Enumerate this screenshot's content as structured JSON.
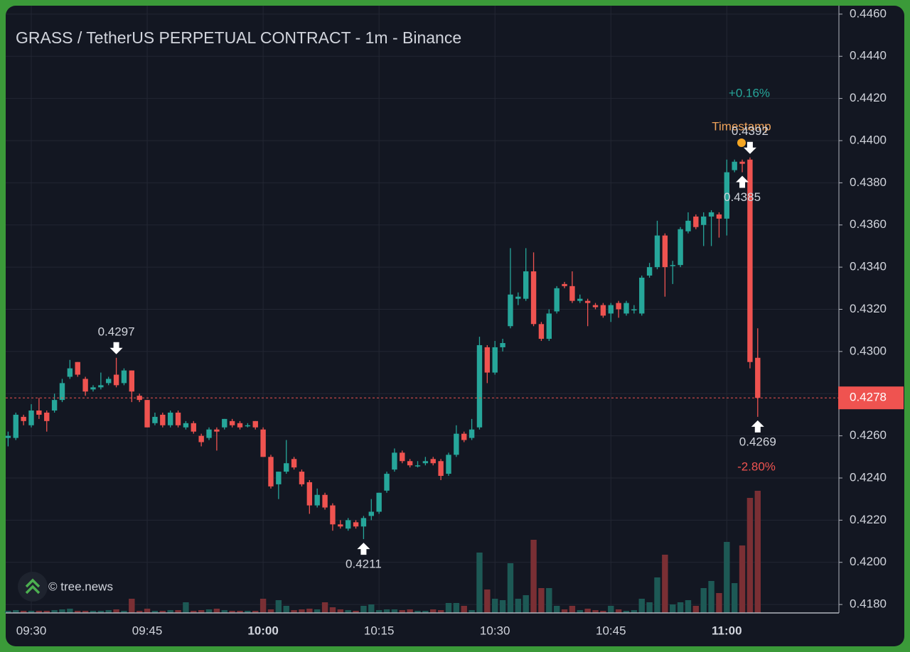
{
  "chart_data": {
    "type": "candlestick",
    "title": "GRASS / TetherUS PERPETUAL CONTRACT - 1m - Binance",
    "categories": [
      null,
      null,
      null,
      "09:30",
      null,
      null,
      null,
      null,
      null,
      null,
      null,
      null,
      null,
      null,
      null,
      null,
      null,
      null,
      "09:45",
      null,
      null,
      null,
      null,
      null,
      null,
      null,
      null,
      null,
      null,
      null,
      null,
      null,
      null,
      "10:00",
      null,
      null,
      null,
      null,
      null,
      null,
      null,
      null,
      null,
      null,
      null,
      null,
      null,
      null,
      "10:15",
      null,
      null,
      null,
      null,
      null,
      null,
      null,
      null,
      null,
      null,
      null,
      null,
      null,
      null,
      "10:30",
      null,
      null,
      null,
      null,
      null,
      null,
      null,
      null,
      null,
      null,
      null,
      null,
      null,
      null,
      "10:45",
      null,
      null,
      null,
      null,
      null,
      null,
      null,
      null,
      null,
      null,
      null,
      null,
      null,
      null,
      "11:00",
      null,
      null,
      null,
      null
    ],
    "open": [
      0.4259,
      0.4259,
      0.4269,
      0.4265,
      0.4272,
      0.4271,
      0.4272,
      0.4277,
      0.4288,
      0.4295,
      0.4287,
      0.4282,
      0.4283,
      0.4285,
      0.4289,
      0.4285,
      0.4291,
      0.4279,
      0.4277,
      0.4266,
      0.427,
      0.4265,
      0.4271,
      0.4264,
      0.4266,
      0.426,
      0.4259,
      0.4263,
      0.4264,
      0.4267,
      0.4266,
      0.4265,
      0.4267,
      0.4263,
      0.425,
      0.4237,
      0.4243,
      0.4249,
      0.4243,
      0.4238,
      0.4227,
      0.4232,
      0.4227,
      0.4218,
      0.4216,
      0.4219,
      0.4217,
      0.4222,
      0.4224,
      0.4234,
      0.4244,
      0.4252,
      0.4248,
      0.4246,
      0.4247,
      0.4249,
      0.4248,
      0.4242,
      0.4251,
      0.4261,
      0.4259,
      0.4264,
      0.4302,
      0.429,
      0.4302,
      0.4312,
      0.4325,
      0.4325,
      0.4338,
      0.4313,
      0.4306,
      0.4319,
      0.4332,
      0.4331,
      0.4324,
      0.4324,
      0.4322,
      0.4322,
      0.4318,
      0.4323,
      0.4318,
      0.432,
      0.4318,
      0.4336,
      0.434,
      0.4355,
      0.4341,
      0.4341,
      0.4357,
      0.4364,
      0.436,
      0.4364,
      0.4365,
      0.4363,
      0.4386,
      0.439,
      0.4391,
      0.4297
    ],
    "high": [
      0.4262,
      0.4271,
      0.427,
      0.4275,
      0.4278,
      0.4272,
      0.428,
      0.4287,
      0.4296,
      0.4295,
      0.4288,
      0.4284,
      0.429,
      0.4288,
      0.4297,
      0.4292,
      0.4291,
      0.428,
      0.4277,
      0.4271,
      0.4271,
      0.4272,
      0.4272,
      0.4267,
      0.4267,
      0.4261,
      0.4264,
      0.4264,
      0.4268,
      0.4268,
      0.4267,
      0.4266,
      0.4267,
      0.4264,
      0.4251,
      0.4243,
      0.4258,
      0.425,
      0.4244,
      0.4239,
      0.4235,
      0.4233,
      0.4228,
      0.422,
      0.4221,
      0.422,
      0.4222,
      0.423,
      0.4233,
      0.4243,
      0.4254,
      0.4253,
      0.4249,
      0.4248,
      0.425,
      0.425,
      0.4249,
      0.4252,
      0.4265,
      0.4262,
      0.4268,
      0.4307,
      0.4303,
      0.4305,
      0.4306,
      0.4349,
      0.4328,
      0.4349,
      0.4347,
      0.4314,
      0.432,
      0.4331,
      0.4333,
      0.4338,
      0.4327,
      0.4325,
      0.4323,
      0.4323,
      0.4323,
      0.4324,
      0.4324,
      0.4322,
      0.4336,
      0.4342,
      0.4362,
      0.4356,
      0.4343,
      0.4359,
      0.4366,
      0.4365,
      0.4366,
      0.4367,
      0.4366,
      0.4391,
      0.4391,
      0.4391,
      0.4392,
      0.4311
    ],
    "low": [
      0.4255,
      0.4258,
      0.4265,
      0.4264,
      0.4268,
      0.4262,
      0.4271,
      0.4276,
      0.4287,
      0.4288,
      0.4279,
      0.4281,
      0.4282,
      0.4284,
      0.4283,
      0.4284,
      0.4276,
      0.4276,
      0.4264,
      0.4265,
      0.4264,
      0.4264,
      0.4264,
      0.4263,
      0.4261,
      0.4255,
      0.4258,
      0.4253,
      0.4263,
      0.4264,
      0.4263,
      0.4264,
      0.4263,
      0.425,
      0.4235,
      0.423,
      0.4242,
      0.4244,
      0.4236,
      0.4223,
      0.4226,
      0.4225,
      0.4215,
      0.4216,
      0.4215,
      0.4216,
      0.4211,
      0.422,
      0.4223,
      0.4233,
      0.4243,
      0.4247,
      0.4245,
      0.4245,
      0.4246,
      0.4246,
      0.4239,
      0.4241,
      0.425,
      0.4257,
      0.4258,
      0.4263,
      0.4285,
      0.4289,
      0.43,
      0.4311,
      0.4322,
      0.4324,
      0.4312,
      0.4305,
      0.4305,
      0.4318,
      0.433,
      0.4323,
      0.4323,
      0.4312,
      0.432,
      0.4316,
      0.4314,
      0.4316,
      0.4317,
      0.4318,
      0.4317,
      0.4335,
      0.4339,
      0.4326,
      0.4332,
      0.434,
      0.4356,
      0.4358,
      0.435,
      0.435,
      0.4354,
      0.4355,
      0.4385,
      0.4385,
      0.4292,
      0.4269
    ],
    "close": [
      0.426,
      0.427,
      0.4267,
      0.4272,
      0.427,
      0.4267,
      0.4277,
      0.4285,
      0.4292,
      0.4289,
      0.4281,
      0.4283,
      0.4284,
      0.4287,
      0.4284,
      0.4291,
      0.4281,
      0.4277,
      0.4264,
      0.4269,
      0.4265,
      0.4271,
      0.4265,
      0.4266,
      0.4262,
      0.4257,
      0.4263,
      0.4262,
      0.4268,
      0.4265,
      0.4264,
      0.4265,
      0.4264,
      0.425,
      0.4236,
      0.4243,
      0.4247,
      0.4245,
      0.4237,
      0.4227,
      0.4232,
      0.4226,
      0.4218,
      0.4217,
      0.422,
      0.4217,
      0.4221,
      0.4224,
      0.4233,
      0.4242,
      0.4252,
      0.4248,
      0.4246,
      0.4246,
      0.4248,
      0.4247,
      0.4241,
      0.4251,
      0.4261,
      0.4258,
      0.4263,
      0.4303,
      0.429,
      0.4302,
      0.4304,
      0.4327,
      0.4326,
      0.4338,
      0.4313,
      0.4306,
      0.4318,
      0.433,
      0.4331,
      0.4324,
      0.4325,
      0.4323,
      0.4321,
      0.4317,
      0.4322,
      0.432,
      0.4323,
      0.432,
      0.4335,
      0.434,
      0.4355,
      0.434,
      0.4341,
      0.4358,
      0.4362,
      0.4359,
      0.4364,
      0.4366,
      0.4363,
      0.4385,
      0.439,
      0.4389,
      0.4295,
      0.4278
    ],
    "volume": [
      3,
      4,
      3,
      3,
      3,
      3,
      4,
      5,
      6,
      3,
      3,
      3,
      3,
      4,
      5,
      3,
      20,
      3,
      6,
      3,
      3,
      4,
      4,
      15,
      3,
      4,
      5,
      6,
      4,
      3,
      3,
      3,
      3,
      20,
      5,
      18,
      10,
      4,
      5,
      6,
      5,
      15,
      8,
      5,
      4,
      3,
      10,
      12,
      4,
      5,
      5,
      4,
      5,
      3,
      3,
      5,
      4,
      14,
      14,
      10,
      4,
      85,
      33,
      20,
      18,
      70,
      20,
      25,
      103,
      35,
      35,
      10,
      5,
      10,
      4,
      6,
      4,
      3,
      10,
      5,
      3,
      4,
      20,
      15,
      50,
      82,
      12,
      15,
      18,
      10,
      35,
      45,
      28,
      100,
      42,
      95,
      162,
      172
    ],
    "vlim": [
      0,
      200
    ],
    "up_color": "#26a69a",
    "down_color": "#ef5350",
    "up_volume_color": "#1d5955",
    "down_volume_color": "#7a2f34",
    "ylim": [
      0.4176,
      0.4464
    ],
    "yticks": [
      {
        "value": 0.418,
        "label": "0.4180"
      },
      {
        "value": 0.42,
        "label": "0.4200"
      },
      {
        "value": 0.422,
        "label": "0.4220"
      },
      {
        "value": 0.424,
        "label": "0.4240"
      },
      {
        "value": 0.426,
        "label": "0.4260"
      },
      {
        "value": 0.428,
        "label": "0.4280"
      },
      {
        "value": 0.43,
        "label": "0.4300"
      },
      {
        "value": 0.432,
        "label": "0.4320"
      },
      {
        "value": 0.434,
        "label": "0.4340"
      },
      {
        "value": 0.436,
        "label": "0.4360"
      },
      {
        "value": 0.438,
        "label": "0.4380"
      },
      {
        "value": 0.44,
        "label": "0.4400"
      },
      {
        "value": 0.442,
        "label": "0.4420"
      },
      {
        "value": 0.444,
        "label": "0.4440"
      },
      {
        "value": 0.446,
        "label": "0.4460"
      }
    ],
    "grid": true,
    "last_price": {
      "value": 0.4278,
      "label": "0.4278"
    },
    "annotations": [
      {
        "value": 0.4297,
        "label": "0.4297"
      },
      {
        "value": 0.4392,
        "label": "0.4392"
      },
      {
        "value": 0.4211,
        "label": "0.4211"
      },
      {
        "value": 0.4385,
        "label": "0.4385"
      },
      {
        "value": 0.4269,
        "label": "0.4269"
      }
    ],
    "change_up": "+0.16%",
    "change_down": "-2.80%",
    "marker_label": "Timestamp",
    "watermark": "© tree.news"
  }
}
